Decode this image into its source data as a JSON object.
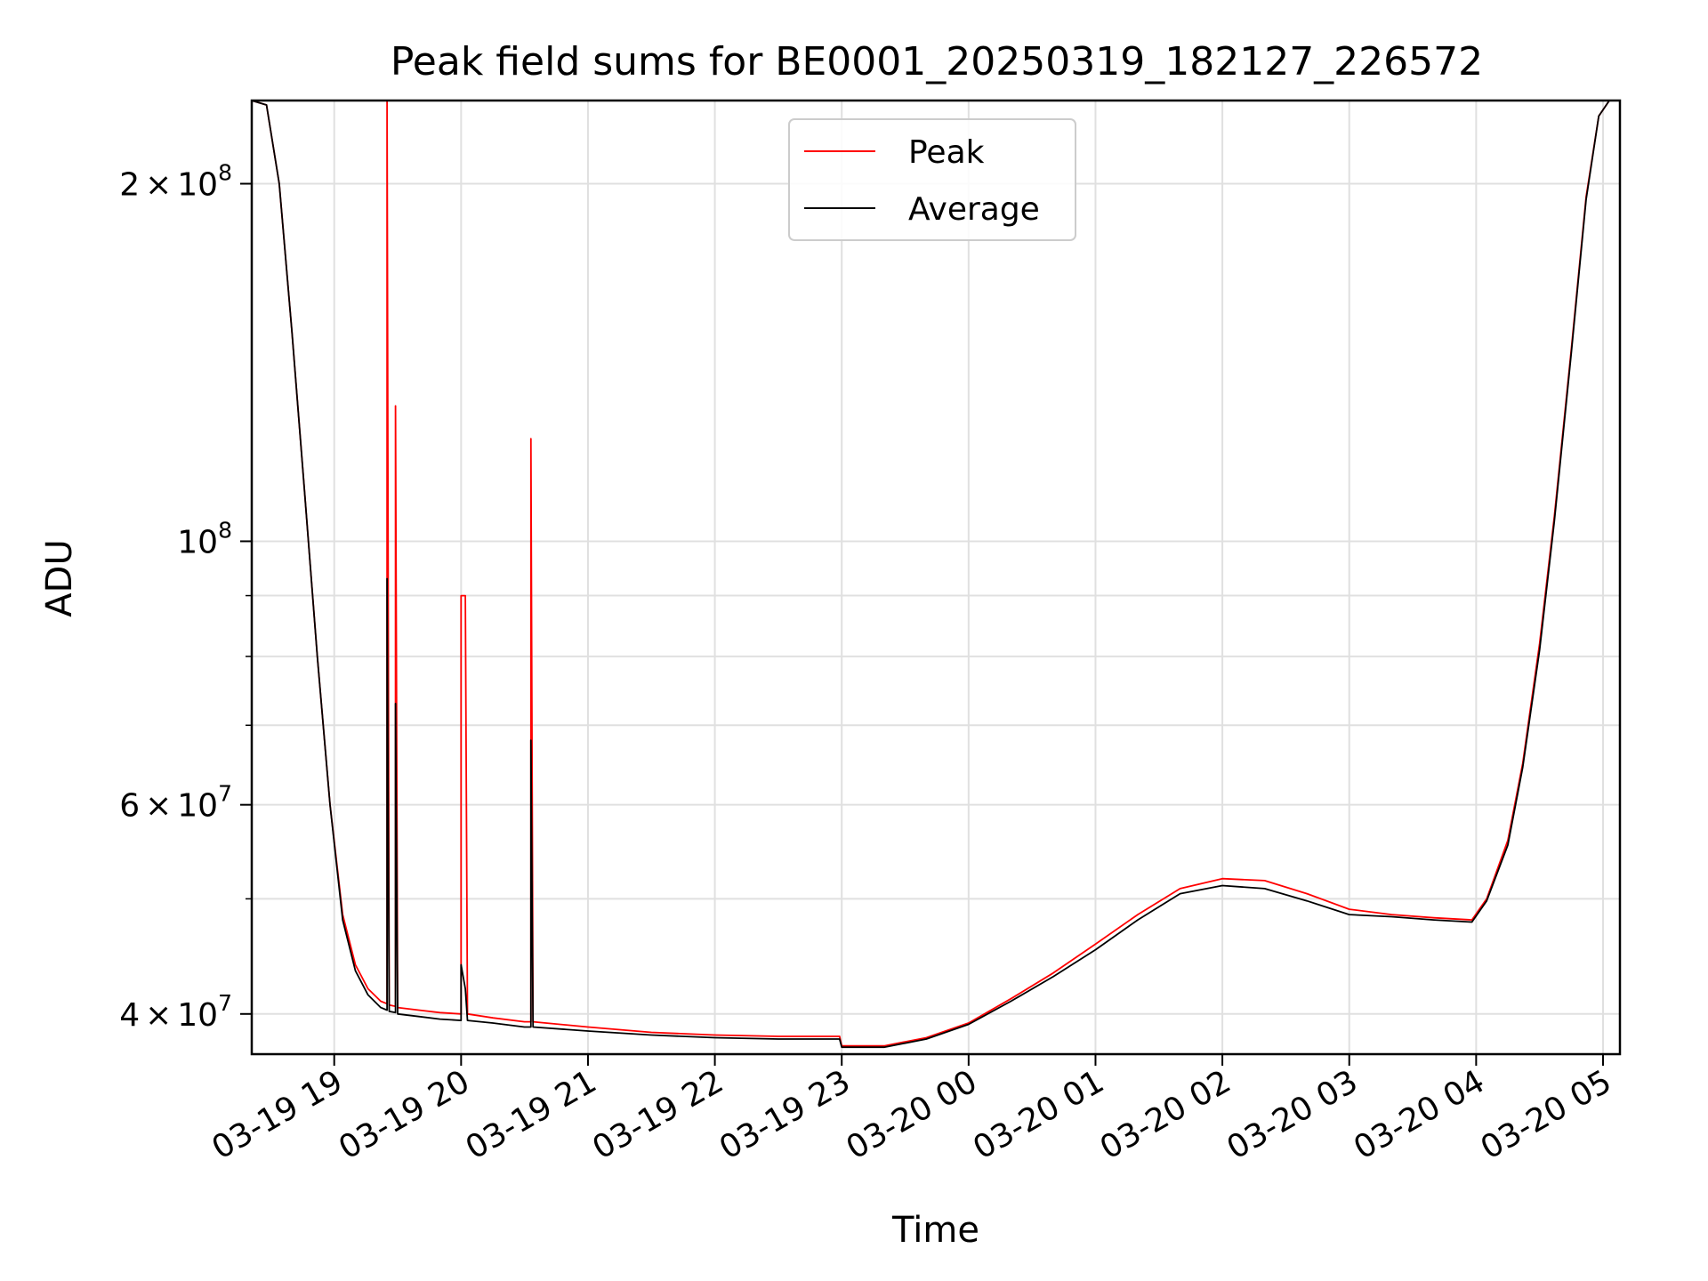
{
  "chart_data": {
    "type": "line",
    "title": "Peak field sums for BE0001_20250319_182127_226572",
    "xlabel": "Time",
    "ylabel": "ADU",
    "yscale": "log",
    "xlim": [
      "2025-03-19 18:21",
      "2025-03-20 05:08"
    ],
    "ylim": [
      37000000,
      235000000
    ],
    "grid": true,
    "legend_position": "top-center",
    "x_ticks": [
      {
        "t": "2025-03-19 19:00",
        "label": "03-19 19"
      },
      {
        "t": "2025-03-19 20:00",
        "label": "03-19 20"
      },
      {
        "t": "2025-03-19 21:00",
        "label": "03-19 21"
      },
      {
        "t": "2025-03-19 22:00",
        "label": "03-19 22"
      },
      {
        "t": "2025-03-19 23:00",
        "label": "03-19 23"
      },
      {
        "t": "2025-03-20 00:00",
        "label": "03-20 00"
      },
      {
        "t": "2025-03-20 01:00",
        "label": "03-20 01"
      },
      {
        "t": "2025-03-20 02:00",
        "label": "03-20 02"
      },
      {
        "t": "2025-03-20 03:00",
        "label": "03-20 03"
      },
      {
        "t": "2025-03-20 04:00",
        "label": "03-20 04"
      },
      {
        "t": "2025-03-20 05:00",
        "label": "03-20 05"
      }
    ],
    "y_ticks": [
      {
        "value": 40000000,
        "base": "4",
        "exp": "7"
      },
      {
        "value": 60000000,
        "base": "6",
        "exp": "7"
      },
      {
        "value": 100000000,
        "base": "",
        "exp": "8"
      },
      {
        "value": 200000000,
        "base": "2",
        "exp": "8"
      }
    ],
    "y_minor_ticks": [
      50000000,
      70000000,
      80000000,
      90000000
    ],
    "series": [
      {
        "name": "Peak",
        "color": "#ff0000",
        "points": [
          [
            "2025-03-19 18:21",
            235000000
          ],
          [
            "2025-03-19 18:28",
            233000000
          ],
          [
            "2025-03-19 18:34",
            200000000
          ],
          [
            "2025-03-19 18:40",
            150000000
          ],
          [
            "2025-03-19 18:46",
            110000000
          ],
          [
            "2025-03-19 18:52",
            80000000
          ],
          [
            "2025-03-19 18:58",
            60000000
          ],
          [
            "2025-03-19 19:04",
            48500000
          ],
          [
            "2025-03-19 19:10",
            44000000
          ],
          [
            "2025-03-19 19:16",
            42000000
          ],
          [
            "2025-03-19 19:22",
            41000000
          ],
          [
            "2025-03-19 19:25",
            40800000
          ],
          [
            "2025-03-19 19:25",
            235000000
          ],
          [
            "2025-03-19 19:26",
            40700000
          ],
          [
            "2025-03-19 19:29",
            40600000
          ],
          [
            "2025-03-19 19:29",
            130000000
          ],
          [
            "2025-03-19 19:30",
            40500000
          ],
          [
            "2025-03-19 19:40",
            40300000
          ],
          [
            "2025-03-19 19:50",
            40100000
          ],
          [
            "2025-03-19 20:00",
            40000000
          ],
          [
            "2025-03-19 20:00",
            90000000
          ],
          [
            "2025-03-19 20:02",
            90000000
          ],
          [
            "2025-03-19 20:03",
            40000000
          ],
          [
            "2025-03-19 20:15",
            39700000
          ],
          [
            "2025-03-19 20:30",
            39400000
          ],
          [
            "2025-03-19 20:33",
            39400000
          ],
          [
            "2025-03-19 20:33",
            122000000
          ],
          [
            "2025-03-19 20:34",
            39400000
          ],
          [
            "2025-03-19 21:00",
            39000000
          ],
          [
            "2025-03-19 21:30",
            38600000
          ],
          [
            "2025-03-19 22:00",
            38400000
          ],
          [
            "2025-03-19 22:30",
            38300000
          ],
          [
            "2025-03-19 22:59",
            38300000
          ],
          [
            "2025-03-19 23:00",
            37600000
          ],
          [
            "2025-03-19 23:20",
            37600000
          ],
          [
            "2025-03-19 23:40",
            38200000
          ],
          [
            "2025-03-20 00:00",
            39300000
          ],
          [
            "2025-03-20 00:20",
            41200000
          ],
          [
            "2025-03-20 00:40",
            43300000
          ],
          [
            "2025-03-20 01:00",
            45800000
          ],
          [
            "2025-03-20 01:20",
            48500000
          ],
          [
            "2025-03-20 01:40",
            51000000
          ],
          [
            "2025-03-20 02:00",
            52000000
          ],
          [
            "2025-03-20 02:20",
            51800000
          ],
          [
            "2025-03-20 02:40",
            50500000
          ],
          [
            "2025-03-20 03:00",
            49000000
          ],
          [
            "2025-03-20 03:20",
            48500000
          ],
          [
            "2025-03-20 03:40",
            48200000
          ],
          [
            "2025-03-20 03:58",
            48000000
          ],
          [
            "2025-03-20 04:05",
            50000000
          ],
          [
            "2025-03-20 04:15",
            56000000
          ],
          [
            "2025-03-20 04:22",
            65000000
          ],
          [
            "2025-03-20 04:30",
            82000000
          ],
          [
            "2025-03-20 04:37",
            105000000
          ],
          [
            "2025-03-20 04:45",
            145000000
          ],
          [
            "2025-03-20 04:52",
            195000000
          ],
          [
            "2025-03-20 04:58",
            228000000
          ],
          [
            "2025-03-20 05:03",
            235000000
          ],
          [
            "2025-03-20 05:08",
            235000000
          ]
        ]
      },
      {
        "name": "Average",
        "color": "#000000",
        "points": [
          [
            "2025-03-19 18:21",
            235000000
          ],
          [
            "2025-03-19 18:28",
            233000000
          ],
          [
            "2025-03-19 18:34",
            200000000
          ],
          [
            "2025-03-19 18:40",
            150000000
          ],
          [
            "2025-03-19 18:46",
            110000000
          ],
          [
            "2025-03-19 18:52",
            80000000
          ],
          [
            "2025-03-19 18:58",
            60000000
          ],
          [
            "2025-03-19 19:04",
            48000000
          ],
          [
            "2025-03-19 19:10",
            43500000
          ],
          [
            "2025-03-19 19:16",
            41500000
          ],
          [
            "2025-03-19 19:22",
            40500000
          ],
          [
            "2025-03-19 19:25",
            40300000
          ],
          [
            "2025-03-19 19:25",
            93000000
          ],
          [
            "2025-03-19 19:26",
            40200000
          ],
          [
            "2025-03-19 19:29",
            40100000
          ],
          [
            "2025-03-19 19:29",
            73000000
          ],
          [
            "2025-03-19 19:30",
            40000000
          ],
          [
            "2025-03-19 19:40",
            39800000
          ],
          [
            "2025-03-19 19:50",
            39600000
          ],
          [
            "2025-03-19 20:00",
            39500000
          ],
          [
            "2025-03-19 20:00",
            44000000
          ],
          [
            "2025-03-19 20:02",
            42000000
          ],
          [
            "2025-03-19 20:03",
            39500000
          ],
          [
            "2025-03-19 20:15",
            39300000
          ],
          [
            "2025-03-19 20:30",
            39000000
          ],
          [
            "2025-03-19 20:33",
            39000000
          ],
          [
            "2025-03-19 20:33",
            68000000
          ],
          [
            "2025-03-19 20:34",
            39000000
          ],
          [
            "2025-03-19 21:00",
            38700000
          ],
          [
            "2025-03-19 21:30",
            38400000
          ],
          [
            "2025-03-19 22:00",
            38200000
          ],
          [
            "2025-03-19 22:30",
            38100000
          ],
          [
            "2025-03-19 22:59",
            38100000
          ],
          [
            "2025-03-19 23:00",
            37500000
          ],
          [
            "2025-03-19 23:20",
            37500000
          ],
          [
            "2025-03-19 23:40",
            38100000
          ],
          [
            "2025-03-20 00:00",
            39200000
          ],
          [
            "2025-03-20 00:20",
            41000000
          ],
          [
            "2025-03-20 00:40",
            43000000
          ],
          [
            "2025-03-20 01:00",
            45300000
          ],
          [
            "2025-03-20 01:20",
            48000000
          ],
          [
            "2025-03-20 01:40",
            50500000
          ],
          [
            "2025-03-20 02:00",
            51300000
          ],
          [
            "2025-03-20 02:20",
            51000000
          ],
          [
            "2025-03-20 02:40",
            49800000
          ],
          [
            "2025-03-20 03:00",
            48500000
          ],
          [
            "2025-03-20 03:20",
            48300000
          ],
          [
            "2025-03-20 03:40",
            48000000
          ],
          [
            "2025-03-20 03:58",
            47800000
          ],
          [
            "2025-03-20 04:05",
            49800000
          ],
          [
            "2025-03-20 04:15",
            55500000
          ],
          [
            "2025-03-20 04:22",
            64500000
          ],
          [
            "2025-03-20 04:30",
            81000000
          ],
          [
            "2025-03-20 04:37",
            104000000
          ],
          [
            "2025-03-20 04:45",
            144000000
          ],
          [
            "2025-03-20 04:52",
            194000000
          ],
          [
            "2025-03-20 04:58",
            228000000
          ],
          [
            "2025-03-20 05:03",
            235000000
          ],
          [
            "2025-03-20 05:08",
            235000000
          ]
        ]
      }
    ]
  }
}
